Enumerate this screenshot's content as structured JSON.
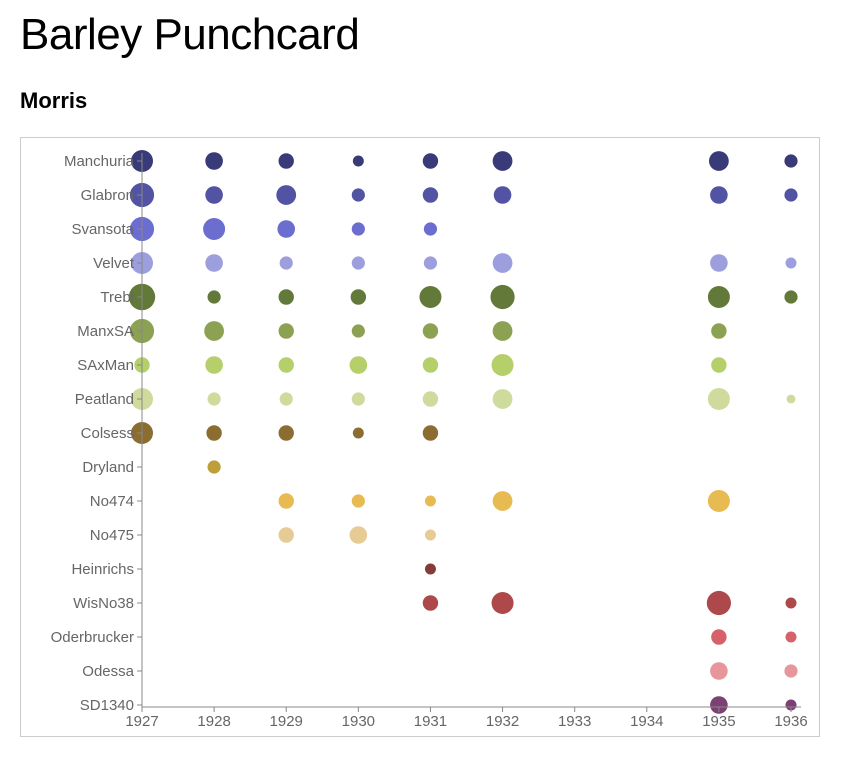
{
  "title": "Barley Punchcard",
  "subtitle": "Morris",
  "chart_data": {
    "type": "scatter",
    "title": "Barley Punchcard",
    "subtitle": "Morris",
    "xlabel": "",
    "ylabel": "",
    "x_ticks": [
      1927,
      1928,
      1929,
      1930,
      1931,
      1932,
      1933,
      1934,
      1935,
      1936
    ],
    "xlim": [
      1927,
      1936
    ],
    "categories": [
      "Manchuria",
      "Glabron",
      "Svansota",
      "Velvet",
      "Trebi",
      "ManxSA",
      "SAxMan",
      "Peatland",
      "Colsess",
      "Dryland",
      "No474",
      "No475",
      "Heinrichs",
      "WisNo38",
      "Oderbrucker",
      "Odessa",
      "SD1340"
    ],
    "category_labels": [
      "Manchuria",
      "Glabron",
      "Svansota",
      "Velvet",
      "Trebi",
      "ManxSA",
      "SAxMan",
      "Peatland",
      "Colsess",
      "Dryland",
      "No474",
      "No475",
      "Heinrichs",
      "WisNo38",
      "Oderbrucker",
      "Odessa",
      "SD1340"
    ],
    "size_encoding": "relative yield (estimated from circle area)",
    "grid": false,
    "series": [
      {
        "category": "Manchuria",
        "color": "#393b79",
        "points": [
          {
            "x": 1927,
            "v": 1.0
          },
          {
            "x": 1928,
            "v": 0.8
          },
          {
            "x": 1929,
            "v": 0.7
          },
          {
            "x": 1930,
            "v": 0.5
          },
          {
            "x": 1931,
            "v": 0.7
          },
          {
            "x": 1932,
            "v": 0.9
          },
          {
            "x": 1935,
            "v": 0.9
          },
          {
            "x": 1936,
            "v": 0.6
          }
        ]
      },
      {
        "category": "Glabron",
        "color": "#5254a3",
        "points": [
          {
            "x": 1927,
            "v": 1.1
          },
          {
            "x": 1928,
            "v": 0.8
          },
          {
            "x": 1929,
            "v": 0.9
          },
          {
            "x": 1930,
            "v": 0.6
          },
          {
            "x": 1931,
            "v": 0.7
          },
          {
            "x": 1932,
            "v": 0.8
          },
          {
            "x": 1935,
            "v": 0.8
          },
          {
            "x": 1936,
            "v": 0.6
          }
        ]
      },
      {
        "category": "Svansota",
        "color": "#6b6ecf",
        "points": [
          {
            "x": 1927,
            "v": 1.1
          },
          {
            "x": 1928,
            "v": 1.0
          },
          {
            "x": 1929,
            "v": 0.8
          },
          {
            "x": 1930,
            "v": 0.6
          },
          {
            "x": 1931,
            "v": 0.6
          }
        ]
      },
      {
        "category": "Velvet",
        "color": "#9c9ede",
        "points": [
          {
            "x": 1927,
            "v": 1.0
          },
          {
            "x": 1928,
            "v": 0.8
          },
          {
            "x": 1929,
            "v": 0.6
          },
          {
            "x": 1930,
            "v": 0.6
          },
          {
            "x": 1931,
            "v": 0.6
          },
          {
            "x": 1932,
            "v": 0.9
          },
          {
            "x": 1935,
            "v": 0.8
          },
          {
            "x": 1936,
            "v": 0.5
          }
        ]
      },
      {
        "category": "Trebi",
        "color": "#637939",
        "points": [
          {
            "x": 1927,
            "v": 1.2
          },
          {
            "x": 1928,
            "v": 0.6
          },
          {
            "x": 1929,
            "v": 0.7
          },
          {
            "x": 1930,
            "v": 0.7
          },
          {
            "x": 1931,
            "v": 1.0
          },
          {
            "x": 1932,
            "v": 1.1
          },
          {
            "x": 1935,
            "v": 1.0
          },
          {
            "x": 1936,
            "v": 0.6
          }
        ]
      },
      {
        "category": "ManxSA",
        "color": "#8ca252",
        "points": [
          {
            "x": 1927,
            "v": 1.1
          },
          {
            "x": 1928,
            "v": 0.9
          },
          {
            "x": 1929,
            "v": 0.7
          },
          {
            "x": 1930,
            "v": 0.6
          },
          {
            "x": 1931,
            "v": 0.7
          },
          {
            "x": 1932,
            "v": 0.9
          },
          {
            "x": 1935,
            "v": 0.7
          }
        ]
      },
      {
        "category": "SAxMan",
        "color": "#b5cf6b",
        "points": [
          {
            "x": 1927,
            "v": 0.7
          },
          {
            "x": 1928,
            "v": 0.8
          },
          {
            "x": 1929,
            "v": 0.7
          },
          {
            "x": 1930,
            "v": 0.8
          },
          {
            "x": 1931,
            "v": 0.7
          },
          {
            "x": 1932,
            "v": 1.0
          },
          {
            "x": 1935,
            "v": 0.7
          }
        ]
      },
      {
        "category": "Peatland",
        "color": "#cedb9c",
        "points": [
          {
            "x": 1927,
            "v": 1.0
          },
          {
            "x": 1928,
            "v": 0.6
          },
          {
            "x": 1929,
            "v": 0.6
          },
          {
            "x": 1930,
            "v": 0.6
          },
          {
            "x": 1931,
            "v": 0.7
          },
          {
            "x": 1932,
            "v": 0.9
          },
          {
            "x": 1935,
            "v": 1.0
          },
          {
            "x": 1936,
            "v": 0.4
          }
        ]
      },
      {
        "category": "Colsess",
        "color": "#8c6d31",
        "points": [
          {
            "x": 1927,
            "v": 1.0
          },
          {
            "x": 1928,
            "v": 0.7
          },
          {
            "x": 1929,
            "v": 0.7
          },
          {
            "x": 1930,
            "v": 0.5
          },
          {
            "x": 1931,
            "v": 0.7
          }
        ]
      },
      {
        "category": "Dryland",
        "color": "#bd9e39",
        "points": [
          {
            "x": 1928,
            "v": 0.6
          }
        ]
      },
      {
        "category": "No474",
        "color": "#e7ba52",
        "points": [
          {
            "x": 1929,
            "v": 0.7
          },
          {
            "x": 1930,
            "v": 0.6
          },
          {
            "x": 1931,
            "v": 0.5
          },
          {
            "x": 1932,
            "v": 0.9
          },
          {
            "x": 1935,
            "v": 1.0
          }
        ]
      },
      {
        "category": "No475",
        "color": "#e7cb94",
        "points": [
          {
            "x": 1929,
            "v": 0.7
          },
          {
            "x": 1930,
            "v": 0.8
          },
          {
            "x": 1931,
            "v": 0.5
          }
        ]
      },
      {
        "category": "Heinrichs",
        "color": "#843c39",
        "points": [
          {
            "x": 1931,
            "v": 0.5
          }
        ]
      },
      {
        "category": "WisNo38",
        "color": "#ad494a",
        "points": [
          {
            "x": 1931,
            "v": 0.7
          },
          {
            "x": 1932,
            "v": 1.0
          },
          {
            "x": 1935,
            "v": 1.1
          },
          {
            "x": 1936,
            "v": 0.5
          }
        ]
      },
      {
        "category": "Oderbrucker",
        "color": "#d6616b",
        "points": [
          {
            "x": 1935,
            "v": 0.7
          },
          {
            "x": 1936,
            "v": 0.5
          }
        ]
      },
      {
        "category": "Odessa",
        "color": "#e7969c",
        "points": [
          {
            "x": 1935,
            "v": 0.8
          },
          {
            "x": 1936,
            "v": 0.6
          }
        ]
      },
      {
        "category": "SD1340",
        "color": "#7b4173",
        "points": [
          {
            "x": 1935,
            "v": 0.8
          },
          {
            "x": 1936,
            "v": 0.5
          }
        ]
      }
    ]
  }
}
